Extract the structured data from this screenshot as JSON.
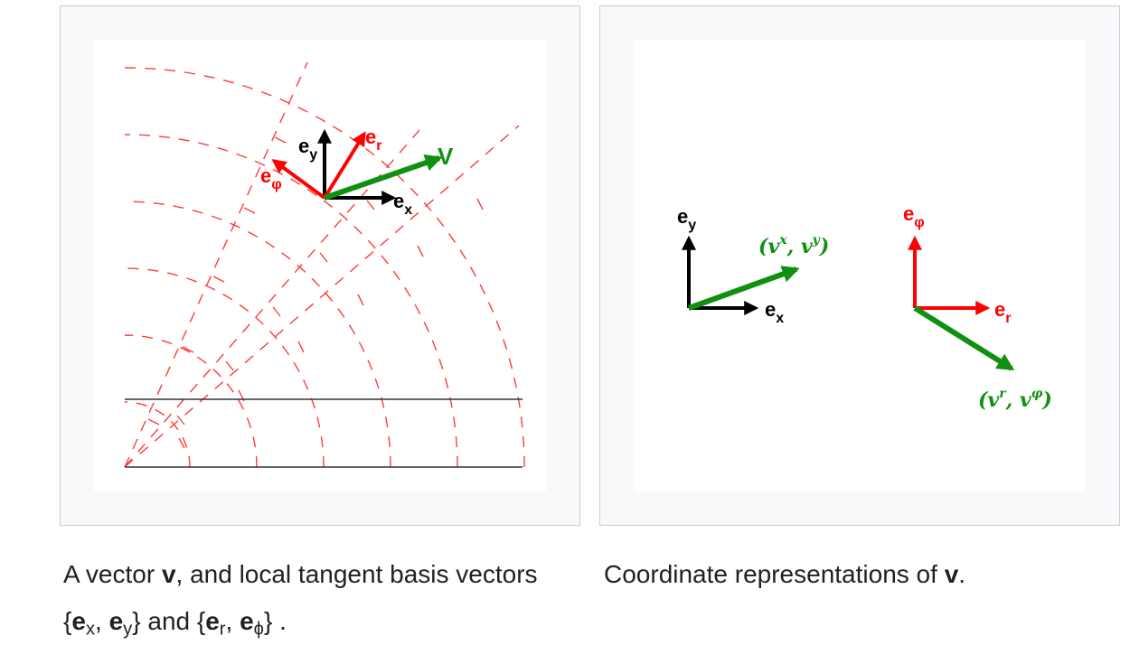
{
  "figures": [
    {
      "labels": {
        "e_y": "e",
        "e_y_sub": "y",
        "e_r": "e",
        "e_r_sub": "r",
        "e_phi": "e",
        "e_phi_sub": "φ",
        "e_x": "e",
        "e_x_sub": "x",
        "v": "V"
      },
      "caption": {
        "t1": "A vector ",
        "v": "v",
        "t2": ", and local tangent basis vectors {",
        "ex": "e",
        "ex_sub": "x",
        "comma1": ", ",
        "ey": "e",
        "ey_sub": "y",
        "t3": "} and {",
        "er": "e",
        "er_sub": "r",
        "comma2": ", ",
        "ephi": "e",
        "ephi_sub": "ϕ",
        "t4": "} ."
      }
    },
    {
      "labels": {
        "e_y": "e",
        "e_y_sub": "y",
        "e_x": "e",
        "e_x_sub": "x",
        "e_phi": "e",
        "e_phi_sub": "φ",
        "e_r": "e",
        "e_r_sub": "r",
        "vxy": "(v",
        "vxy_sup_x": "x",
        "vxy_mid": ", v",
        "vxy_sup_y": "y",
        "vxy_end": ")",
        "vrphi": "(v",
        "vrphi_sup_r": "r",
        "vrphi_mid": ", v",
        "vrphi_sup_phi": "φ",
        "vrphi_end": ")"
      },
      "caption": {
        "t1": "Coordinate representations of ",
        "v": "v",
        "t2": "."
      }
    }
  ],
  "colors": {
    "red": "#ff0000",
    "green": "#109010",
    "black": "#000000",
    "grid": "#ff3b3b"
  }
}
